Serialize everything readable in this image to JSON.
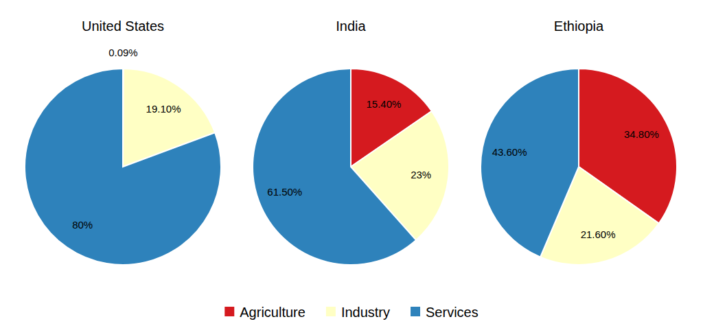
{
  "chart_data": [
    {
      "type": "pie",
      "title": "United States",
      "categories": [
        "Agriculture",
        "Industry",
        "Services"
      ],
      "values": [
        0.09,
        19.1,
        80
      ],
      "value_labels": [
        "0.09%",
        "19.10%",
        "80%"
      ],
      "colors": [
        "#d51a1f",
        "#ffffc4",
        "#2e82bb"
      ],
      "data_labels": true,
      "legend": "bottom"
    },
    {
      "type": "pie",
      "title": "India",
      "categories": [
        "Agriculture",
        "Industry",
        "Services"
      ],
      "values": [
        15.4,
        23,
        61.5
      ],
      "value_labels": [
        "15.40%",
        "23%",
        "61.50%"
      ],
      "colors": [
        "#d51a1f",
        "#ffffc4",
        "#2e82bb"
      ],
      "data_labels": true
    },
    {
      "type": "pie",
      "title": "Ethiopia",
      "categories": [
        "Agriculture",
        "Industry",
        "Services"
      ],
      "values": [
        34.8,
        21.6,
        43.6
      ],
      "value_labels": [
        "34.80%",
        "21.60%",
        "43.60%"
      ],
      "colors": [
        "#d51a1f",
        "#ffffc4",
        "#2e82bb"
      ],
      "data_labels": true
    }
  ]
}
